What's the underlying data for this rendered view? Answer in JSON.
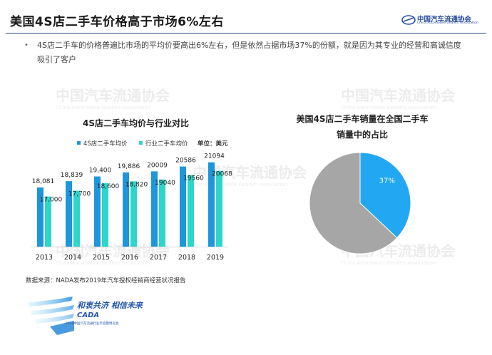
{
  "title": "美国4S店二手车价格高于市场6%左右",
  "header_logo": {
    "name": "中国汽车流通协会",
    "sub": "China Automobile Dealers Association",
    "icon": "cada-emblem-icon"
  },
  "bullet": "4S店二手车的价格普遍比市场的平均价要高出6%左右，但是依然占据市场37%的份额，就是因为其专业的经营和高诚信度吸引了客户",
  "watermark": {
    "text": "中国汽车流通协会",
    "sub": "China Automobile Dealers Association"
  },
  "source": "数据来源：NADA发布2019年汽车授权经销商经营状况报告",
  "footer": {
    "slogan": "和衷共济 相信未来",
    "brand": "CADA",
    "sub": "2020中国汽车流通行业年会暨博览会"
  },
  "colors": {
    "series1": "#1e96dc",
    "series2": "#2cd6cc",
    "pie_share": "#22a8f2",
    "pie_rest": "#a6a6a6",
    "title_rule": "#2e4a8a"
  },
  "chart_data": [
    {
      "type": "bar",
      "title": "4S店二手车均价与行业对比",
      "unit_label": "单位：美元",
      "categories": [
        "2013",
        "2014",
        "2015",
        "2016",
        "2017",
        "2018",
        "2019"
      ],
      "series": [
        {
          "name": "4S店二手车均价",
          "values": [
            18081,
            18839,
            19400,
            19886,
            20009,
            20586,
            21094
          ],
          "labels": [
            "18,081",
            "18,839",
            "19,400",
            "19,886",
            "20009",
            "20586",
            "21094"
          ]
        },
        {
          "name": "行业二手车均价",
          "values": [
            17000,
            17700,
            18600,
            18820,
            19040,
            19560,
            20068
          ],
          "labels": [
            "17,000",
            "17,700",
            "18,600",
            "18,820",
            "19040",
            "19560",
            "20068"
          ]
        }
      ],
      "grid": false,
      "legend": "top"
    },
    {
      "type": "pie",
      "title": "美国4S店二手车销量在全国二手车销量中的占比",
      "title_lines": [
        "美国4S店二手车销量在全国二手车",
        "销量中的占比"
      ],
      "slices": [
        {
          "label": "37%",
          "value": 37
        },
        {
          "label": "",
          "value": 63
        }
      ]
    }
  ]
}
